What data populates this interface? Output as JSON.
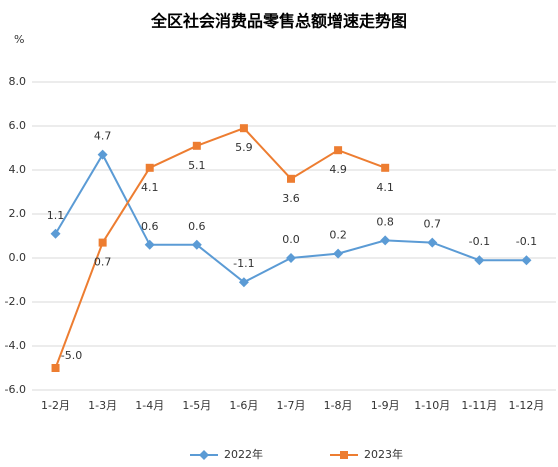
{
  "chart_data": {
    "type": "line",
    "title": "全区社会消费品零售总额增速走势图",
    "y_label": "%",
    "categories": [
      "1-2月",
      "1-3月",
      "1-4月",
      "1-5月",
      "1-6月",
      "1-7月",
      "1-8月",
      "1-9月",
      "1-10月",
      "1-11月",
      "1-12月"
    ],
    "series": [
      {
        "name": "2022年",
        "color": "#5b9bd5",
        "marker": "diamond",
        "values": [
          1.1,
          4.7,
          0.6,
          0.6,
          -1.1,
          0,
          0.2,
          0.8,
          0.7,
          -0.1,
          -0.1
        ],
        "value_labels": [
          "1.1",
          "4.7",
          "0.6",
          "0.6",
          "-1.1",
          "0.0",
          "0.2",
          "0.8",
          "0.7",
          "-0.1",
          "-0.1"
        ]
      },
      {
        "name": "2023年",
        "color": "#ed7d31",
        "marker": "square",
        "values": [
          -5,
          0.7,
          4.1,
          5.1,
          5.9,
          3.6,
          4.9,
          4.1,
          null,
          null,
          null
        ],
        "value_labels": [
          "-5.0",
          "0.7",
          "4.1",
          "5.1",
          "5.9",
          "3.6",
          "4.9",
          "4.1",
          null,
          null,
          null
        ]
      }
    ],
    "ylim": [
      -6,
      8
    ],
    "yticks": [
      {
        "value": -6,
        "label": "-6.0"
      },
      {
        "value": -4,
        "label": "-4.0"
      },
      {
        "value": -2,
        "label": "-2.0"
      },
      {
        "value": 0,
        "label": "0.0"
      },
      {
        "value": 2,
        "label": "2.0"
      },
      {
        "value": 4,
        "label": "4.0"
      },
      {
        "value": 6,
        "label": "6.0"
      },
      {
        "value": 8,
        "label": "8.0"
      }
    ],
    "grid": true,
    "legend": "bottom"
  }
}
